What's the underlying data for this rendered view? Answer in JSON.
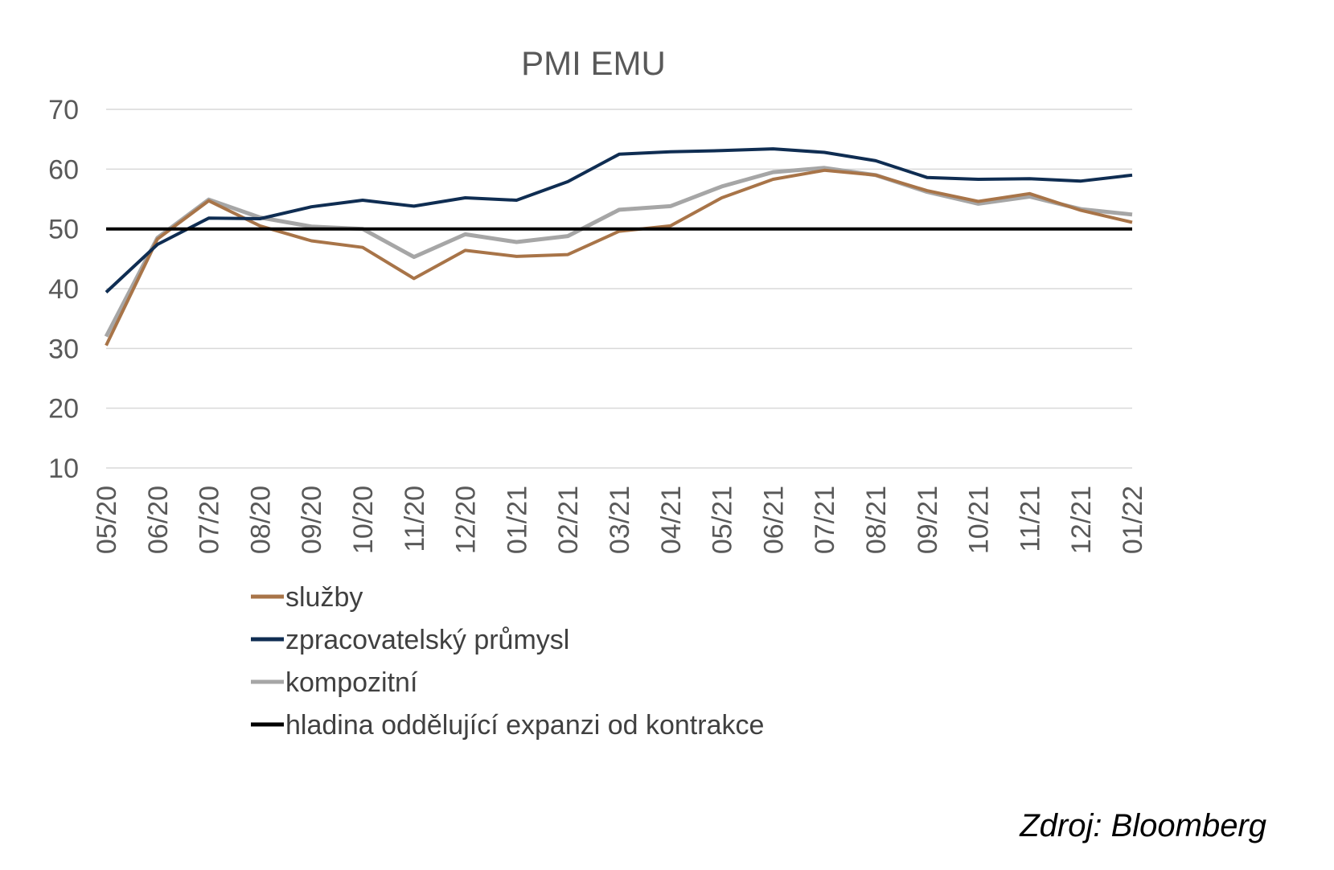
{
  "source_label": "Zdroj: Bloomberg",
  "chart_data": {
    "type": "line",
    "title": "PMI EMU",
    "xlabel": "",
    "ylabel": "",
    "ylim": [
      10,
      70
    ],
    "yticks": [
      "10",
      "20",
      "30",
      "40",
      "50",
      "60",
      "70"
    ],
    "grid": true,
    "legend_position": "bottom-left",
    "categories": [
      "05/20",
      "06/20",
      "07/20",
      "08/20",
      "09/20",
      "10/20",
      "11/20",
      "12/20",
      "01/21",
      "02/21",
      "03/21",
      "04/21",
      "05/21",
      "06/21",
      "07/21",
      "08/21",
      "09/21",
      "10/21",
      "11/21",
      "12/21",
      "01/22"
    ],
    "series": [
      {
        "name": "služby",
        "color": "#A87448",
        "width": 4,
        "values": [
          30.5,
          48.3,
          54.7,
          50.5,
          48.0,
          46.9,
          41.7,
          46.4,
          45.4,
          45.7,
          49.6,
          50.5,
          55.2,
          58.3,
          59.8,
          59.0,
          56.4,
          54.6,
          55.9,
          53.1,
          51.1
        ]
      },
      {
        "name": "zpracovatelský průmysl",
        "color": "#0F2D52",
        "width": 4,
        "values": [
          39.4,
          47.4,
          51.8,
          51.7,
          53.7,
          54.8,
          53.8,
          55.2,
          54.8,
          57.9,
          62.5,
          62.9,
          63.1,
          63.4,
          62.8,
          61.4,
          58.6,
          58.3,
          58.4,
          58.0,
          59.0
        ]
      },
      {
        "name": "kompozitní",
        "color": "#A6A6A6",
        "width": 5,
        "values": [
          32.0,
          48.5,
          54.9,
          51.9,
          50.4,
          50.0,
          45.3,
          49.1,
          47.8,
          48.8,
          53.2,
          53.8,
          57.1,
          59.5,
          60.2,
          59.0,
          56.2,
          54.2,
          55.4,
          53.3,
          52.4
        ]
      },
      {
        "name": "hladina oddělující expanzi od kontrakce",
        "color": "#000000",
        "width": 4,
        "values": [
          50,
          50,
          50,
          50,
          50,
          50,
          50,
          50,
          50,
          50,
          50,
          50,
          50,
          50,
          50,
          50,
          50,
          50,
          50,
          50,
          50
        ]
      }
    ]
  }
}
